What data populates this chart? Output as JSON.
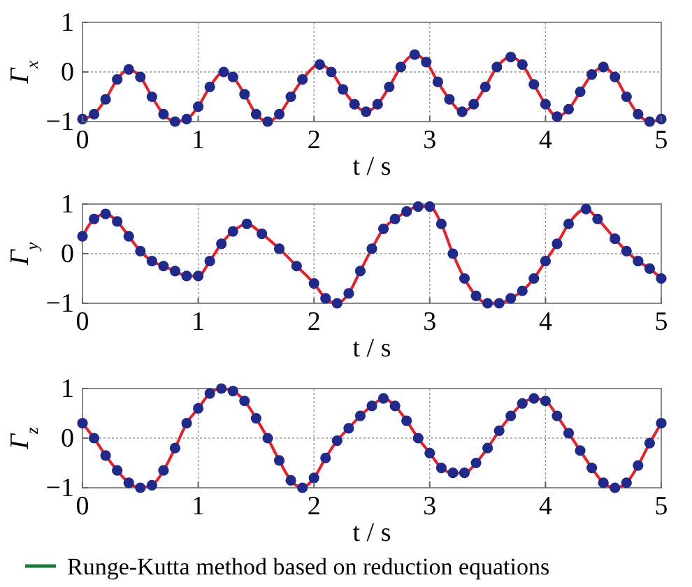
{
  "chart_data": [
    {
      "type": "line",
      "xlabel": "t / s",
      "ylabel": "Γ$_{x}$",
      "xlim": [
        0,
        5
      ],
      "ylim": [
        -1,
        1
      ],
      "xticks": [
        0,
        1,
        2,
        3,
        4,
        5
      ],
      "yticks": [
        -1,
        0,
        1
      ],
      "grid": true,
      "x": [
        0,
        0.1,
        0.2,
        0.3,
        0.4,
        0.5,
        0.6,
        0.7,
        0.8,
        0.9,
        1.0,
        1.1,
        1.22,
        1.3,
        1.4,
        1.5,
        1.6,
        1.7,
        1.8,
        1.9,
        2.05,
        2.15,
        2.25,
        2.35,
        2.45,
        2.55,
        2.65,
        2.75,
        2.87,
        2.97,
        3.07,
        3.17,
        3.28,
        3.38,
        3.48,
        3.58,
        3.7,
        3.8,
        3.9,
        4.0,
        4.1,
        4.2,
        4.3,
        4.4,
        4.5,
        4.6,
        4.7,
        4.8,
        4.9,
        5
      ],
      "series": [
        {
          "type": "line",
          "color": "#e8202a",
          "line_style": "solid",
          "values": [
            -0.95,
            -0.85,
            -0.55,
            -0.15,
            0.05,
            -0.1,
            -0.5,
            -0.85,
            -1,
            -0.95,
            -0.7,
            -0.3,
            0,
            -0.1,
            -0.45,
            -0.85,
            -1,
            -0.85,
            -0.5,
            -0.15,
            0.15,
            0,
            -0.35,
            -0.65,
            -0.8,
            -0.65,
            -0.3,
            0.1,
            0.35,
            0.2,
            -0.2,
            -0.55,
            -0.8,
            -0.65,
            -0.3,
            0.1,
            0.3,
            0.15,
            -0.25,
            -0.65,
            -0.9,
            -0.75,
            -0.4,
            -0.05,
            0.1,
            -0.1,
            -0.5,
            -0.85,
            -1,
            -0.95
          ]
        },
        {
          "type": "scatter",
          "color": "#1f2a8a",
          "marker": "circle",
          "values": [
            -0.95,
            -0.85,
            -0.55,
            -0.15,
            0.05,
            -0.1,
            -0.5,
            -0.85,
            -1,
            -0.95,
            -0.7,
            -0.3,
            0,
            -0.1,
            -0.45,
            -0.85,
            -1,
            -0.85,
            -0.5,
            -0.15,
            0.15,
            0,
            -0.35,
            -0.65,
            -0.8,
            -0.65,
            -0.3,
            0.1,
            0.35,
            0.2,
            -0.2,
            -0.55,
            -0.8,
            -0.65,
            -0.3,
            0.1,
            0.3,
            0.15,
            -0.25,
            -0.65,
            -0.9,
            -0.75,
            -0.4,
            -0.05,
            0.1,
            -0.1,
            -0.5,
            -0.85,
            -1,
            -0.95
          ]
        }
      ]
    },
    {
      "type": "line",
      "xlabel": "t / s",
      "ylabel": "Γ$_{y}$",
      "xlim": [
        0,
        5
      ],
      "ylim": [
        -1,
        1
      ],
      "xticks": [
        0,
        1,
        2,
        3,
        4,
        5
      ],
      "yticks": [
        -1,
        0,
        1
      ],
      "grid": true,
      "x": [
        0,
        0.1,
        0.2,
        0.3,
        0.4,
        0.5,
        0.6,
        0.7,
        0.8,
        0.9,
        1.0,
        1.1,
        1.2,
        1.3,
        1.42,
        1.55,
        1.7,
        1.85,
        2.0,
        2.1,
        2.2,
        2.3,
        2.4,
        2.5,
        2.6,
        2.7,
        2.8,
        2.9,
        3.0,
        3.1,
        3.2,
        3.3,
        3.4,
        3.5,
        3.6,
        3.7,
        3.8,
        3.9,
        4.0,
        4.1,
        4.2,
        4.35,
        4.45,
        4.6,
        4.7,
        4.8,
        4.9,
        5
      ],
      "series": [
        {
          "type": "line",
          "color": "#e8202a",
          "line_style": "solid",
          "values": [
            0.35,
            0.7,
            0.8,
            0.65,
            0.35,
            0.05,
            -0.15,
            -0.25,
            -0.35,
            -0.45,
            -0.45,
            -0.15,
            0.2,
            0.45,
            0.6,
            0.4,
            0.1,
            -0.25,
            -0.6,
            -0.9,
            -1,
            -0.8,
            -0.35,
            0.1,
            0.5,
            0.7,
            0.85,
            0.95,
            0.95,
            0.6,
            0,
            -0.5,
            -0.85,
            -1,
            -1,
            -0.9,
            -0.75,
            -0.5,
            -0.15,
            0.2,
            0.6,
            0.9,
            0.7,
            0.3,
            0.05,
            -0.15,
            -0.3,
            -0.5
          ]
        },
        {
          "type": "scatter",
          "color": "#1f2a8a",
          "marker": "circle",
          "values": [
            0.35,
            0.7,
            0.8,
            0.65,
            0.35,
            0.05,
            -0.15,
            -0.25,
            -0.35,
            -0.45,
            -0.45,
            -0.15,
            0.2,
            0.45,
            0.6,
            0.4,
            0.1,
            -0.25,
            -0.6,
            -0.9,
            -1,
            -0.8,
            -0.35,
            0.1,
            0.5,
            0.7,
            0.85,
            0.95,
            0.95,
            0.6,
            0,
            -0.5,
            -0.85,
            -1,
            -1,
            -0.9,
            -0.75,
            -0.5,
            -0.15,
            0.2,
            0.6,
            0.9,
            0.7,
            0.3,
            0.05,
            -0.15,
            -0.3,
            -0.5
          ]
        }
      ]
    },
    {
      "type": "line",
      "xlabel": "t / s",
      "ylabel": "Γ$_{z}$",
      "xlim": [
        0,
        5
      ],
      "ylim": [
        -1,
        1
      ],
      "xticks": [
        0,
        1,
        2,
        3,
        4,
        5
      ],
      "yticks": [
        -1,
        0,
        1
      ],
      "grid": true,
      "legend": "bottom",
      "x": [
        0,
        0.1,
        0.2,
        0.3,
        0.4,
        0.5,
        0.6,
        0.7,
        0.8,
        0.9,
        1.0,
        1.1,
        1.2,
        1.3,
        1.4,
        1.5,
        1.6,
        1.7,
        1.8,
        1.9,
        2.0,
        2.1,
        2.2,
        2.3,
        2.4,
        2.5,
        2.6,
        2.7,
        2.8,
        2.9,
        3.0,
        3.1,
        3.2,
        3.3,
        3.4,
        3.5,
        3.6,
        3.7,
        3.8,
        3.9,
        4.0,
        4.1,
        4.2,
        4.3,
        4.4,
        4.5,
        4.6,
        4.7,
        4.8,
        4.9,
        5
      ],
      "series": [
        {
          "type": "line",
          "color": "#e8202a",
          "line_style": "solid",
          "values": [
            0.3,
            0,
            -0.35,
            -0.65,
            -0.9,
            -1,
            -0.95,
            -0.65,
            -0.2,
            0.3,
            0.6,
            0.9,
            1,
            0.95,
            0.75,
            0.4,
            0,
            -0.45,
            -0.85,
            -1,
            -0.8,
            -0.4,
            -0.05,
            0.2,
            0.45,
            0.65,
            0.8,
            0.65,
            0.35,
            0,
            -0.3,
            -0.6,
            -0.7,
            -0.7,
            -0.5,
            -0.2,
            0.15,
            0.45,
            0.7,
            0.8,
            0.75,
            0.45,
            0.1,
            -0.25,
            -0.6,
            -0.9,
            -1,
            -0.9,
            -0.55,
            -0.1,
            0.3
          ]
        },
        {
          "type": "scatter",
          "color": "#1f2a8a",
          "marker": "circle",
          "values": [
            0.3,
            0,
            -0.35,
            -0.65,
            -0.9,
            -1,
            -0.95,
            -0.65,
            -0.2,
            0.3,
            0.6,
            0.9,
            1,
            0.95,
            0.75,
            0.4,
            0,
            -0.45,
            -0.85,
            -1,
            -0.8,
            -0.4,
            -0.05,
            0.2,
            0.45,
            0.65,
            0.8,
            0.65,
            0.35,
            0,
            -0.3,
            -0.6,
            -0.7,
            -0.7,
            -0.5,
            -0.2,
            0.15,
            0.45,
            0.7,
            0.8,
            0.75,
            0.45,
            0.1,
            -0.25,
            -0.6,
            -0.9,
            -1,
            -0.9,
            -0.55,
            -0.1,
            0.3
          ]
        },
        {
          "type": "line",
          "name": "Runge-Kutta method based on reduction equations",
          "color": "#1a7a3a",
          "line_style": "solid",
          "values": [
            null,
            null,
            null,
            null,
            null,
            null,
            null,
            null,
            null,
            null,
            null,
            null,
            null,
            null,
            null,
            null,
            null,
            null,
            null,
            null,
            null,
            null,
            null,
            null,
            null,
            null,
            null,
            null,
            null,
            null,
            null,
            null,
            null,
            null,
            null,
            null,
            null,
            null,
            null,
            null,
            null,
            null,
            null,
            null,
            null,
            null,
            null,
            null,
            null,
            null,
            null
          ]
        }
      ]
    }
  ]
}
